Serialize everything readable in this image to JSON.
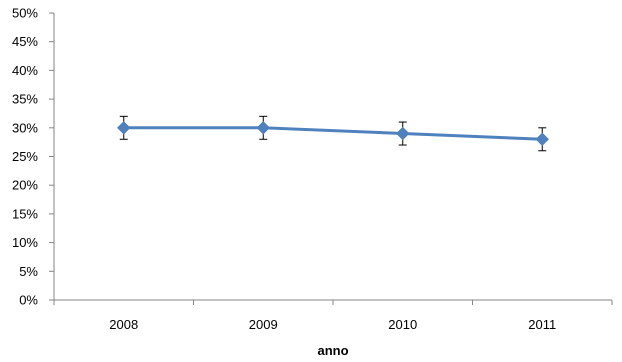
{
  "chart_data": {
    "type": "line",
    "title": "",
    "xlabel": "anno",
    "ylabel": "",
    "categories": [
      "2008",
      "2009",
      "2010",
      "2011"
    ],
    "series": [
      {
        "values": [
          30,
          30,
          29,
          28
        ],
        "error": [
          2,
          2,
          2,
          2
        ],
        "color": "#4F81BD",
        "marker": "diamond"
      }
    ],
    "ylim": [
      0,
      50
    ],
    "y_ticks": [
      0,
      5,
      10,
      15,
      20,
      25,
      30,
      35,
      40,
      45,
      50
    ],
    "y_tick_labels": [
      "0%",
      "5%",
      "10%",
      "15%",
      "20%",
      "25%",
      "30%",
      "35%",
      "40%",
      "45%",
      "50%"
    ],
    "grid": false,
    "legend": "none"
  }
}
